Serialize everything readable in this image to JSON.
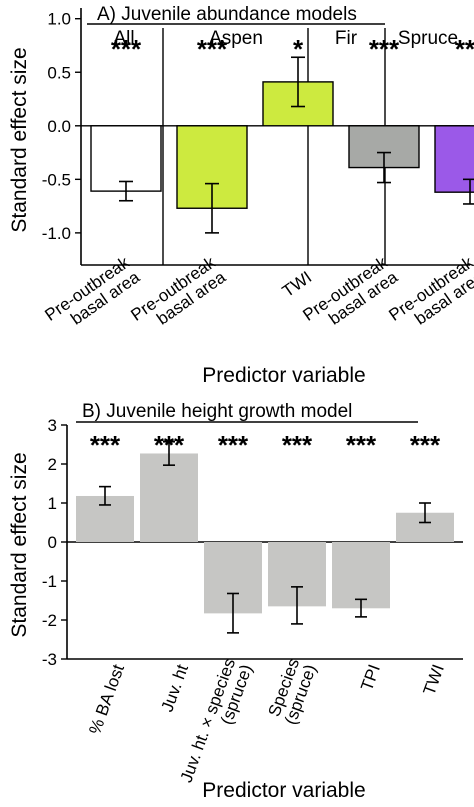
{
  "chart_data": [
    {
      "panel": "A",
      "type": "bar",
      "title": "A) Juvenile abundance models",
      "xlabel": "Predictor variable",
      "ylabel": "Standard effect size",
      "ylim": [
        -1.3,
        1.1
      ],
      "yticks": [
        {
          "v": 1.0,
          "label": "1.0"
        },
        {
          "v": 0.5,
          "label": "0.5"
        },
        {
          "v": 0.0,
          "label": "0.0"
        },
        {
          "v": -0.5,
          "label": "-0.5"
        },
        {
          "v": -1.0,
          "label": "-1.0"
        }
      ],
      "grid": false,
      "legend": "none",
      "groups": [
        {
          "label": "All",
          "n": 1
        },
        {
          "label": "Aspen",
          "n": 2
        },
        {
          "label": "Fir",
          "n": 1
        },
        {
          "label": "Spruce",
          "n": 1
        }
      ],
      "categories": [
        [
          "Pre-outbreak",
          "basal area"
        ],
        [
          "Pre-outbreak",
          "basal area"
        ],
        [
          "TWI"
        ],
        [
          "Pre-outbreak",
          "basal area"
        ],
        [
          "Pre-outbreak",
          "basal area"
        ]
      ],
      "values": [
        -0.61,
        -0.77,
        0.41,
        -0.39,
        -0.62
      ],
      "err_low": [
        -0.7,
        -1.0,
        0.18,
        -0.53,
        -0.73
      ],
      "err_high": [
        -0.52,
        -0.54,
        0.64,
        -0.25,
        -0.5
      ],
      "significance": [
        "***",
        "***",
        "*",
        "***",
        "***"
      ],
      "colors": [
        "#ffffff",
        "#cdea3f",
        "#cdea3f",
        "#a7a9a6",
        "#9b59e8"
      ],
      "edge_color": "#000000"
    },
    {
      "panel": "B",
      "type": "bar",
      "title": "B) Juvenile height growth model",
      "xlabel": "Predictor variable",
      "ylabel": "Standard effect size",
      "ylim": [
        -3,
        3
      ],
      "yticks": [
        {
          "v": 3,
          "label": "3"
        },
        {
          "v": 2,
          "label": "2"
        },
        {
          "v": 1,
          "label": "1"
        },
        {
          "v": 0,
          "label": "0"
        },
        {
          "v": -1,
          "label": "-1"
        },
        {
          "v": -2,
          "label": "-2"
        },
        {
          "v": -3,
          "label": "-3"
        }
      ],
      "grid": false,
      "legend": "none",
      "categories": [
        [
          "% BA lost"
        ],
        [
          "Juv. ht"
        ],
        [
          "Juv. ht. × species",
          "(spruce)"
        ],
        [
          "Species",
          "(spruce)"
        ],
        [
          "TPI"
        ],
        [
          "TWI"
        ]
      ],
      "values": [
        1.18,
        2.27,
        -1.83,
        -1.65,
        -1.7,
        0.75
      ],
      "err_low": [
        0.95,
        1.97,
        -2.33,
        -2.1,
        -1.92,
        0.5
      ],
      "err_high": [
        1.42,
        2.57,
        -1.32,
        -1.15,
        -1.47,
        1.0
      ],
      "significance": [
        "***",
        "***",
        "***",
        "***",
        "***",
        "***"
      ],
      "colors": [
        "#c6c6c4",
        "#c6c6c4",
        "#c6c6c4",
        "#c6c6c4",
        "#c6c6c4",
        "#c6c6c4"
      ]
    }
  ]
}
